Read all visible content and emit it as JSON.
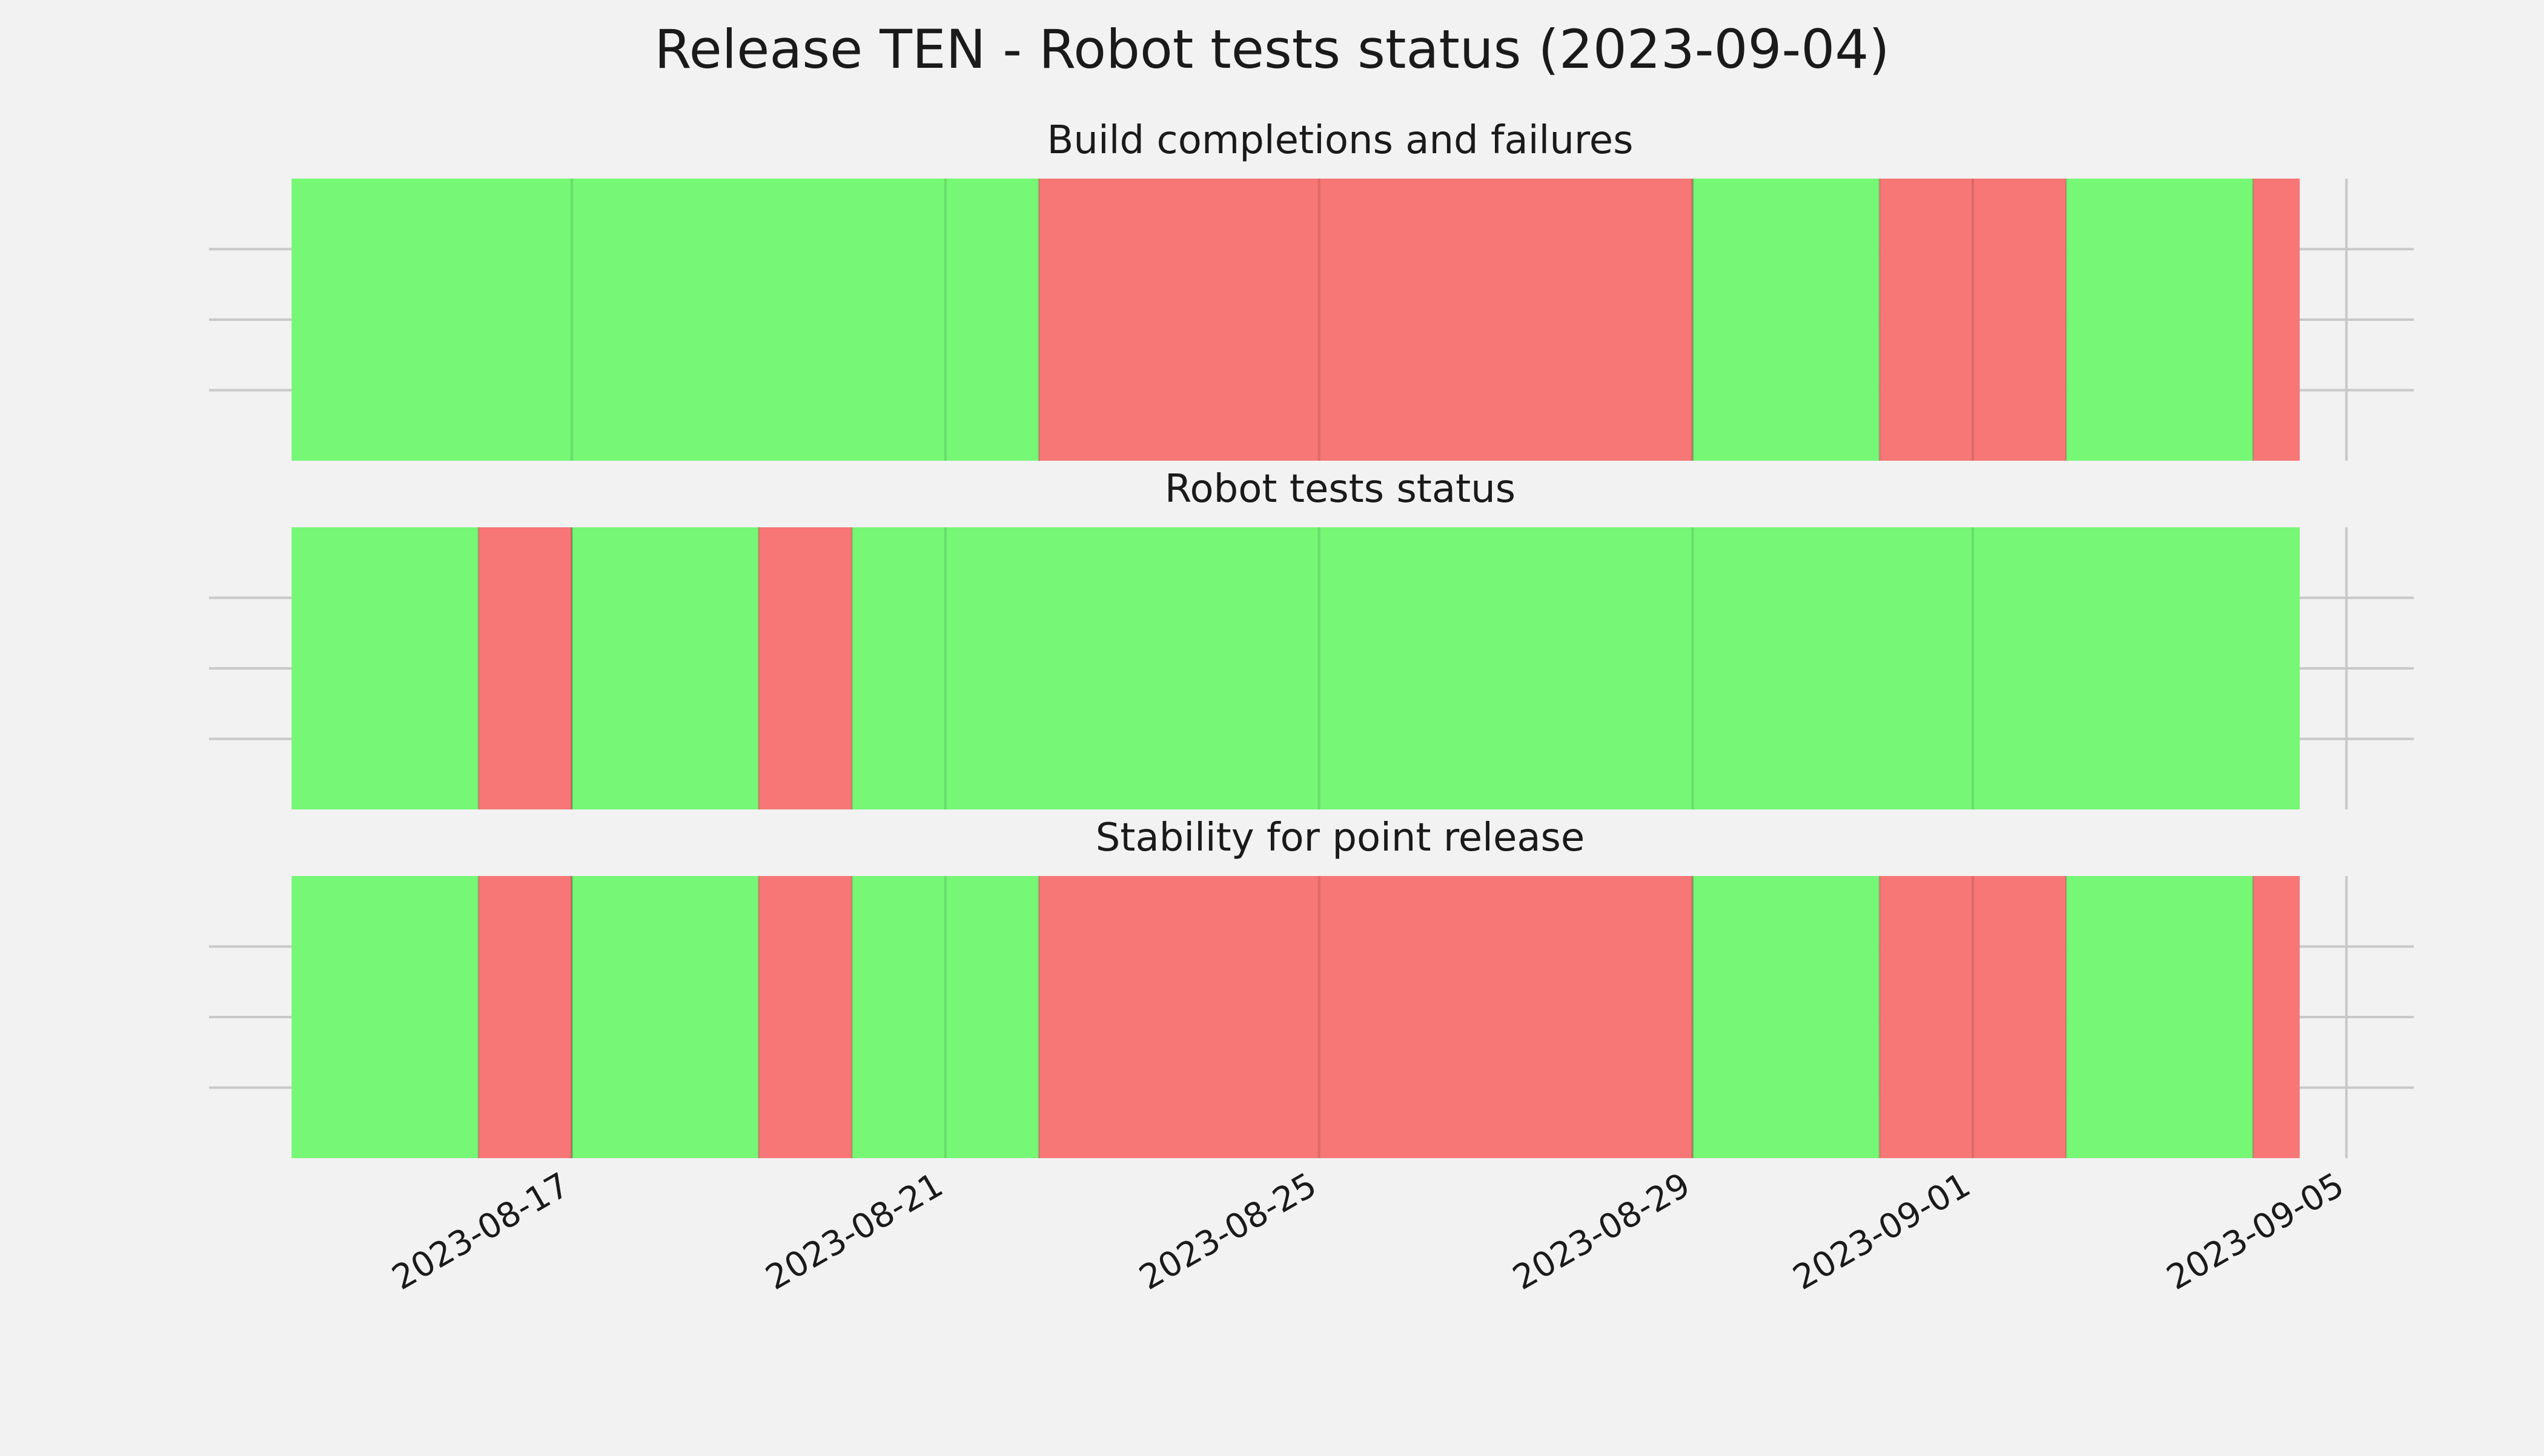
{
  "colors": {
    "background": "#f2f2f2",
    "pass": "#76f776",
    "fail": "#f77676"
  },
  "chart_data": {
    "type": "timeline",
    "title": "Release TEN - Robot tests status (2023-09-04)",
    "xlabel": "",
    "ylabel": "",
    "xlim": [
      "2023-08-14",
      "2023-09-05"
    ],
    "x_ticks": [
      "2023-08-17",
      "2023-08-21",
      "2023-08-25",
      "2023-08-29",
      "2023-09-01",
      "2023-09-05"
    ],
    "grid": true,
    "legend": "none",
    "panels": [
      {
        "title": "Build completions and failures",
        "segments": [
          {
            "start": "2023-08-14",
            "end": "2023-08-22",
            "status": "pass"
          },
          {
            "start": "2023-08-22",
            "end": "2023-08-29",
            "status": "fail"
          },
          {
            "start": "2023-08-29",
            "end": "2023-08-31",
            "status": "pass"
          },
          {
            "start": "2023-08-31",
            "end": "2023-09-02",
            "status": "fail"
          },
          {
            "start": "2023-09-02",
            "end": "2023-09-04",
            "status": "pass"
          },
          {
            "start": "2023-09-04",
            "end": "2023-09-04T12:00",
            "status": "fail"
          }
        ]
      },
      {
        "title": "Robot tests status",
        "segments": [
          {
            "start": "2023-08-14",
            "end": "2023-08-16",
            "status": "pass"
          },
          {
            "start": "2023-08-16",
            "end": "2023-08-17",
            "status": "fail"
          },
          {
            "start": "2023-08-17",
            "end": "2023-08-19",
            "status": "pass"
          },
          {
            "start": "2023-08-19",
            "end": "2023-08-20",
            "status": "fail"
          },
          {
            "start": "2023-08-20",
            "end": "2023-09-04T12:00",
            "status": "pass"
          }
        ]
      },
      {
        "title": "Stability for point release",
        "segments": [
          {
            "start": "2023-08-14",
            "end": "2023-08-16",
            "status": "pass"
          },
          {
            "start": "2023-08-16",
            "end": "2023-08-17",
            "status": "fail"
          },
          {
            "start": "2023-08-17",
            "end": "2023-08-19",
            "status": "pass"
          },
          {
            "start": "2023-08-19",
            "end": "2023-08-20",
            "status": "fail"
          },
          {
            "start": "2023-08-20",
            "end": "2023-08-22",
            "status": "pass"
          },
          {
            "start": "2023-08-22",
            "end": "2023-08-29",
            "status": "fail"
          },
          {
            "start": "2023-08-29",
            "end": "2023-08-31",
            "status": "pass"
          },
          {
            "start": "2023-08-31",
            "end": "2023-09-02",
            "status": "fail"
          },
          {
            "start": "2023-09-02",
            "end": "2023-09-04",
            "status": "pass"
          },
          {
            "start": "2023-09-04",
            "end": "2023-09-04T12:00",
            "status": "fail"
          }
        ]
      }
    ]
  }
}
